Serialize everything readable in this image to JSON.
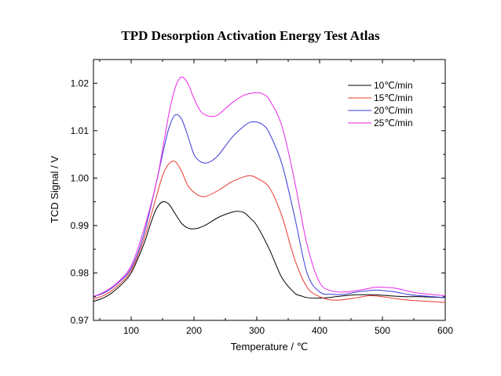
{
  "chart_data": {
    "type": "line",
    "title": "TPD Desorption Activation Energy Test Atlas",
    "xlabel": "Temperature / ℃",
    "ylabel": "TCD Signal / V",
    "xlim": [
      40,
      600
    ],
    "ylim": [
      0.97,
      1.025
    ],
    "xticks": [
      100,
      200,
      300,
      400,
      500,
      600
    ],
    "xtick_labels": [
      "100",
      "200",
      "300",
      "400",
      "500",
      "600"
    ],
    "yticks": [
      0.97,
      0.98,
      0.99,
      1.0,
      1.01,
      1.02
    ],
    "ytick_labels": [
      "0.97",
      "0.98",
      "0.99",
      "1.00",
      "1.01",
      "1.02"
    ],
    "legend_position": "top-right",
    "grid": false,
    "series": [
      {
        "name": "10℃/min",
        "color": "#000000",
        "x": [
          40,
          60,
          80,
          100,
          120,
          130,
          140,
          150,
          160,
          170,
          180,
          190,
          200,
          210,
          220,
          240,
          260,
          270,
          280,
          290,
          300,
          320,
          340,
          360,
          370,
          380,
          400,
          420,
          440,
          460,
          480,
          500,
          520,
          540,
          560,
          600
        ],
        "y": [
          0.974,
          0.975,
          0.977,
          0.98,
          0.986,
          0.99,
          0.9935,
          0.995,
          0.9945,
          0.9925,
          0.9905,
          0.9895,
          0.9893,
          0.9896,
          0.9902,
          0.9918,
          0.9928,
          0.993,
          0.9927,
          0.9915,
          0.99,
          0.985,
          0.979,
          0.9758,
          0.9752,
          0.9748,
          0.9747,
          0.9749,
          0.9752,
          0.9754,
          0.9754,
          0.9753,
          0.9751,
          0.975,
          0.975,
          0.9748
        ]
      },
      {
        "name": "15℃/min",
        "color": "#e8382e",
        "x": [
          40,
          60,
          80,
          100,
          120,
          140,
          150,
          160,
          170,
          180,
          190,
          200,
          210,
          220,
          240,
          260,
          280,
          290,
          300,
          320,
          340,
          360,
          380,
          400,
          420,
          440,
          460,
          480,
          500,
          520,
          540,
          560,
          600
        ],
        "y": [
          0.9745,
          0.9755,
          0.9775,
          0.9805,
          0.987,
          0.996,
          1.0005,
          1.003,
          1.0035,
          1.0015,
          0.9985,
          0.997,
          0.9962,
          0.9962,
          0.9975,
          0.9992,
          1.0003,
          1.0005,
          1.0,
          0.998,
          0.992,
          0.983,
          0.977,
          0.975,
          0.9743,
          0.9744,
          0.9748,
          0.9752,
          0.975,
          0.9746,
          0.9743,
          0.9741,
          0.9738
        ]
      },
      {
        "name": "20℃/min",
        "color": "#3838d8",
        "x": [
          40,
          60,
          80,
          100,
          120,
          140,
          150,
          160,
          170,
          180,
          190,
          200,
          210,
          220,
          230,
          240,
          260,
          280,
          290,
          300,
          310,
          320,
          340,
          360,
          380,
          400,
          420,
          440,
          460,
          480,
          490,
          500,
          520,
          540,
          560,
          600
        ],
        "y": [
          0.975,
          0.976,
          0.978,
          0.981,
          0.988,
          0.999,
          1.005,
          1.0105,
          1.0133,
          1.0125,
          1.009,
          1.005,
          1.0035,
          1.0032,
          1.0038,
          1.005,
          1.0085,
          1.011,
          1.0118,
          1.0118,
          1.0112,
          1.0095,
          1.003,
          0.992,
          0.98,
          0.976,
          0.9755,
          0.9755,
          0.976,
          0.9763,
          0.9764,
          0.9763,
          0.976,
          0.9755,
          0.9752,
          0.9748
        ]
      },
      {
        "name": "25℃/min",
        "color": "#e826e8",
        "x": [
          40,
          60,
          80,
          100,
          120,
          140,
          150,
          160,
          170,
          180,
          190,
          200,
          210,
          220,
          230,
          240,
          260,
          280,
          300,
          310,
          320,
          340,
          360,
          380,
          400,
          420,
          440,
          460,
          480,
          490,
          500,
          520,
          540,
          560,
          600
        ],
        "y": [
          0.975,
          0.9762,
          0.9782,
          0.9815,
          0.989,
          0.999,
          1.006,
          1.0135,
          1.019,
          1.0213,
          1.02,
          1.0168,
          1.0142,
          1.0132,
          1.013,
          1.0135,
          1.0158,
          1.0175,
          1.018,
          1.0177,
          1.0165,
          1.011,
          0.9995,
          0.986,
          0.978,
          0.9762,
          0.976,
          0.9763,
          0.9768,
          0.977,
          0.977,
          0.9768,
          0.9762,
          0.9757,
          0.9752
        ]
      }
    ]
  }
}
